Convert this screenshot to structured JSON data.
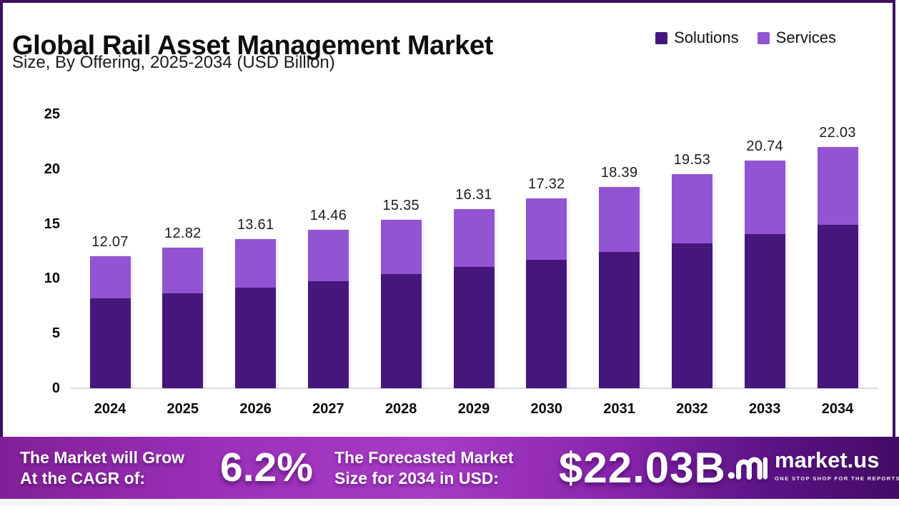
{
  "header": {
    "title": "Global Rail Asset Management Market",
    "subtitle": "Size, By Offering, 2025-2034 (USD Billion)"
  },
  "legend": {
    "items": [
      {
        "label": "Solutions",
        "color": "#45177C"
      },
      {
        "label": "Services",
        "color": "#9254D2"
      }
    ]
  },
  "chart_data": {
    "type": "bar",
    "stacked": true,
    "title": "Global Rail Asset Management Market",
    "subtitle": "Size, By Offering, 2025-2034 (USD Billion)",
    "units": "USD Billion",
    "categories": [
      "2024",
      "2025",
      "2026",
      "2027",
      "2028",
      "2029",
      "2030",
      "2031",
      "2032",
      "2033",
      "2034"
    ],
    "totals": [
      12.07,
      12.82,
      13.61,
      14.46,
      15.35,
      16.31,
      17.32,
      18.39,
      19.53,
      20.74,
      22.03
    ],
    "series": [
      {
        "name": "Solutions",
        "color": "#45177C",
        "values": [
          8.18,
          8.68,
          9.21,
          9.79,
          10.39,
          11.04,
          11.72,
          12.45,
          13.22,
          14.04,
          14.91
        ]
      },
      {
        "name": "Services",
        "color": "#9254D2",
        "values": [
          3.89,
          4.14,
          4.4,
          4.67,
          4.96,
          5.27,
          5.6,
          5.94,
          6.31,
          6.7,
          7.12
        ]
      }
    ],
    "y_ticks": [
      0,
      5,
      10,
      15,
      20,
      25
    ],
    "ylim": [
      0,
      25
    ],
    "grid": false,
    "legend_position": "top-right",
    "value_label_format": "2-decimals"
  },
  "footer": {
    "cagr_label_line1": "The Market will Grow",
    "cagr_label_line2": "At the CAGR of:",
    "cagr_value": "6.2%",
    "forecast_label_line1": "The Forecasted Market",
    "forecast_label_line2": "Size for 2034 in USD:",
    "forecast_value": "$22.03B",
    "brand_name": "market.us",
    "brand_tagline": "ONE STOP SHOP FOR THE REPORTS"
  },
  "colors": {
    "solutions": "#45177C",
    "services": "#9254D2",
    "frame_border": "#3E1161",
    "axis_line": "#DBDADE",
    "banner_gradient_left": "#821F97",
    "banner_gradient_mid": "#A73BC5",
    "banner_gradient_right": "#430B64",
    "text": "#0e0e0e",
    "banner_text": "#FFFFFF"
  }
}
